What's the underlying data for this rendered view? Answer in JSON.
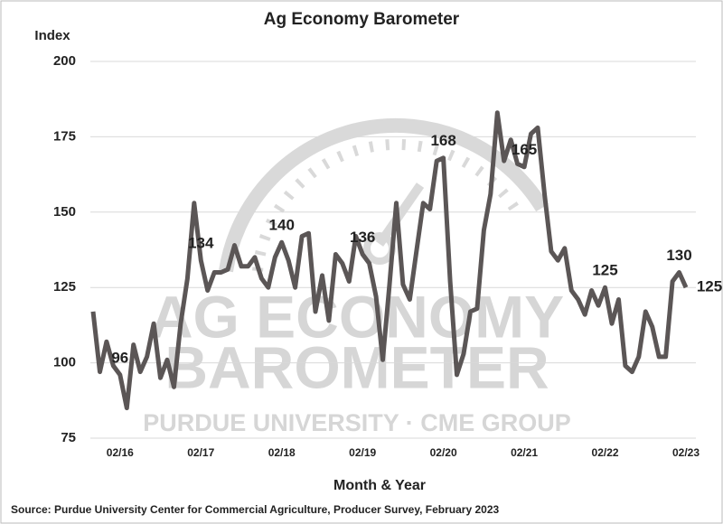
{
  "chart_data": {
    "type": "line",
    "title": "Ag Economy Barometer",
    "y_label": "Index",
    "x_label": "Month & Year",
    "source": "Source: Purdue University Center for Commercial Agriculture, Producer Survey, February 2023",
    "watermark": [
      "AG ECONOMY",
      "BAROMETER",
      "PURDUE UNIVERSITY  ·  CME GROUP"
    ],
    "categories": [
      null,
      null,
      null,
      null,
      "02/16",
      null,
      null,
      null,
      null,
      null,
      null,
      null,
      null,
      null,
      null,
      null,
      "02/17",
      null,
      null,
      null,
      null,
      null,
      null,
      null,
      null,
      null,
      null,
      null,
      "02/18",
      null,
      null,
      null,
      null,
      null,
      null,
      null,
      null,
      null,
      null,
      null,
      "02/19",
      null,
      null,
      null,
      null,
      null,
      null,
      null,
      null,
      null,
      null,
      null,
      "02/20",
      null,
      null,
      null,
      null,
      null,
      null,
      null,
      null,
      null,
      null,
      null,
      "02/21",
      null,
      null,
      null,
      null,
      null,
      null,
      null,
      null,
      null,
      null,
      null,
      "02/22",
      null,
      null,
      null,
      null,
      null,
      null,
      null,
      null,
      null,
      null,
      null,
      "02/23"
    ],
    "series": [
      {
        "name": "Index",
        "color": "#5b5656",
        "values": [
          117,
          97,
          107,
          99,
          96,
          85,
          106,
          97,
          102,
          113,
          95,
          101,
          92,
          113,
          128,
          153,
          134,
          124,
          130,
          130,
          131,
          139,
          132,
          132,
          135,
          128,
          125,
          135,
          140,
          134,
          125,
          142,
          143,
          117,
          129,
          114,
          136,
          133,
          127,
          142,
          136,
          133,
          122,
          101,
          126,
          153,
          126,
          121,
          137,
          153,
          151,
          167,
          168,
          127,
          96,
          103,
          117,
          118,
          144,
          156,
          183,
          167,
          174,
          166,
          165,
          176,
          178,
          156,
          137,
          134,
          138,
          124,
          121,
          116,
          124,
          119,
          125,
          113,
          121,
          99,
          97,
          102,
          117,
          112,
          102,
          102,
          127,
          130,
          125
        ],
        "value_labels": [
          null,
          null,
          null,
          null,
          96,
          null,
          null,
          null,
          null,
          null,
          null,
          null,
          null,
          null,
          null,
          null,
          134,
          null,
          null,
          null,
          null,
          null,
          null,
          null,
          null,
          null,
          null,
          null,
          140,
          null,
          null,
          null,
          null,
          null,
          null,
          null,
          null,
          null,
          null,
          null,
          136,
          null,
          null,
          null,
          null,
          null,
          null,
          null,
          null,
          null,
          null,
          null,
          168,
          null,
          null,
          null,
          null,
          null,
          null,
          null,
          null,
          null,
          null,
          null,
          165,
          null,
          null,
          null,
          null,
          null,
          null,
          null,
          null,
          null,
          null,
          null,
          125,
          null,
          null,
          null,
          null,
          null,
          null,
          null,
          null,
          null,
          null,
          130,
          125
        ]
      }
    ],
    "ylim": [
      75,
      200
    ],
    "yticks": [
      75,
      100,
      125,
      150,
      175,
      200
    ],
    "grid": true
  }
}
